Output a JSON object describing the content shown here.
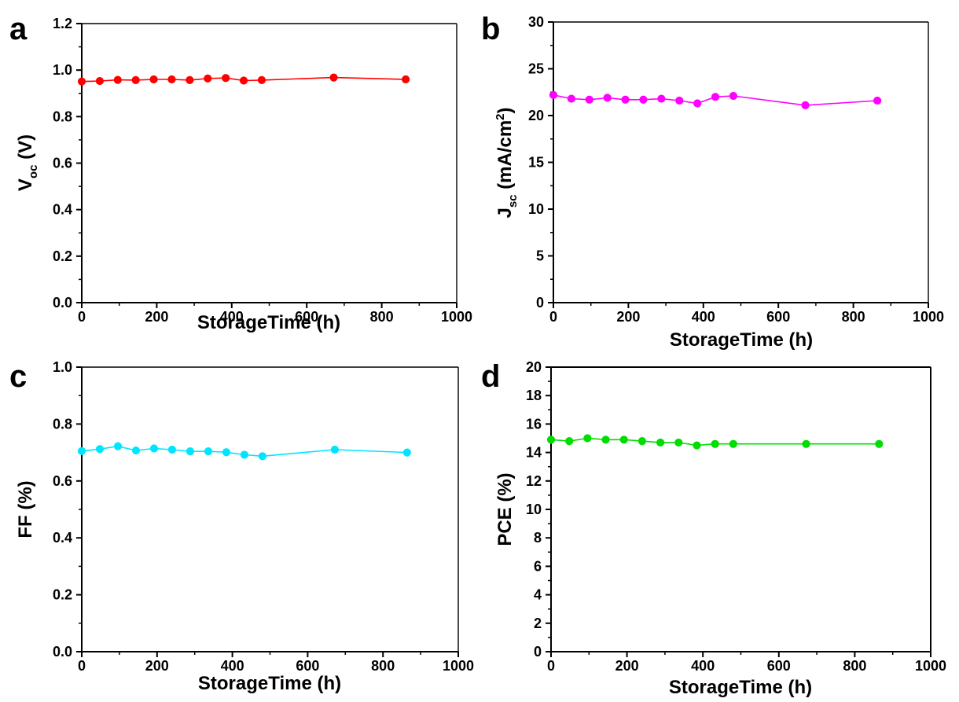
{
  "chart_data": [
    {
      "type": "line",
      "panel_label": "a",
      "xlabel": "StorageTime (h)",
      "ylabel": {
        "main": "V",
        "sub": "oc",
        "unit": "(V)"
      },
      "xlim": [
        0,
        1000
      ],
      "ylim": [
        0,
        1.2
      ],
      "xticks": [
        "0",
        "200",
        "400",
        "600",
        "800",
        "1000"
      ],
      "yticks": [
        "0.0",
        "0.2",
        "0.4",
        "0.6",
        "0.8",
        "1.0",
        "1.2"
      ],
      "series": [
        {
          "color": "#ff0000",
          "x": [
            0,
            48,
            96,
            144,
            192,
            240,
            288,
            336,
            384,
            432,
            480,
            672,
            864
          ],
          "y": [
            0.951,
            0.953,
            0.958,
            0.957,
            0.96,
            0.96,
            0.957,
            0.964,
            0.966,
            0.955,
            0.957,
            0.968,
            0.96
          ]
        }
      ]
    },
    {
      "type": "line",
      "panel_label": "b",
      "xlabel": "StorageTime (h)",
      "ylabel": {
        "main": "J",
        "sub": "sc",
        "unit": "(mA/cm",
        "sup": "2",
        "close": ")"
      },
      "xlim": [
        0,
        1000
      ],
      "ylim": [
        0,
        30
      ],
      "xticks": [
        "0",
        "200",
        "400",
        "600",
        "800",
        "1000"
      ],
      "yticks": [
        "0",
        "5",
        "10",
        "15",
        "20",
        "25",
        "30"
      ],
      "series": [
        {
          "color": "#ff00ff",
          "x": [
            0,
            48,
            96,
            144,
            192,
            240,
            288,
            336,
            384,
            432,
            480,
            672,
            864
          ],
          "y": [
            22.2,
            21.8,
            21.7,
            21.9,
            21.7,
            21.7,
            21.8,
            21.6,
            21.3,
            22.0,
            22.1,
            21.1,
            21.6
          ]
        }
      ]
    },
    {
      "type": "line",
      "panel_label": "c",
      "xlabel": "StorageTime (h)",
      "ylabel": {
        "main": "FF (%)"
      },
      "xlim": [
        0,
        1000
      ],
      "ylim": [
        0,
        1.0
      ],
      "xticks": [
        "0",
        "200",
        "400",
        "600",
        "800",
        "1000"
      ],
      "yticks": [
        "0.0",
        "0.2",
        "0.4",
        "0.6",
        "0.8",
        "1.0"
      ],
      "series": [
        {
          "color": "#00e5ff",
          "x": [
            0,
            48,
            96,
            144,
            192,
            240,
            288,
            336,
            384,
            432,
            480,
            672,
            864
          ],
          "y": [
            0.705,
            0.712,
            0.722,
            0.707,
            0.714,
            0.71,
            0.704,
            0.704,
            0.701,
            0.692,
            0.687,
            0.71,
            0.7
          ]
        }
      ]
    },
    {
      "type": "line",
      "panel_label": "d",
      "xlabel": "StorageTime (h)",
      "ylabel": {
        "main": "PCE (%)"
      },
      "xlim": [
        0,
        1000
      ],
      "ylim": [
        0,
        20
      ],
      "xticks": [
        "0",
        "200",
        "400",
        "600",
        "800",
        "1000"
      ],
      "yticks": [
        "0",
        "2",
        "4",
        "6",
        "8",
        "10",
        "12",
        "14",
        "16",
        "18",
        "20"
      ],
      "series": [
        {
          "color": "#00dd00",
          "x": [
            0,
            48,
            96,
            144,
            192,
            240,
            288,
            336,
            384,
            432,
            480,
            672,
            864
          ],
          "y": [
            14.9,
            14.8,
            15.0,
            14.9,
            14.9,
            14.8,
            14.7,
            14.7,
            14.5,
            14.6,
            14.6,
            14.6,
            14.6
          ]
        }
      ]
    }
  ]
}
